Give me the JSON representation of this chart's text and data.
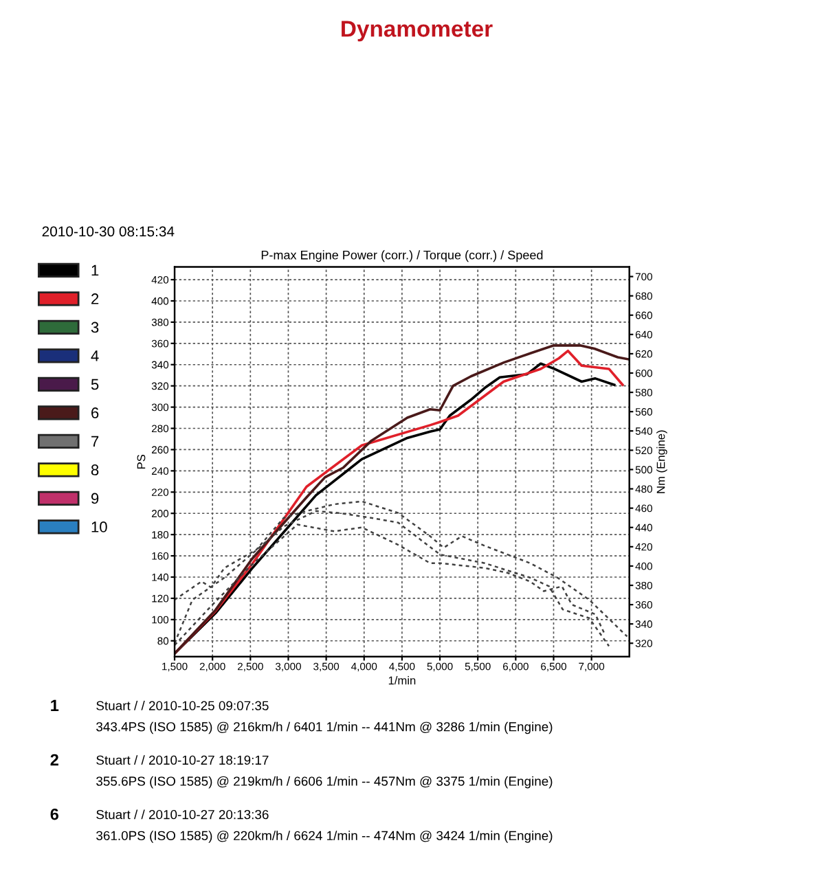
{
  "chart_data": {
    "type": "line",
    "title": "Dynamometer",
    "subtitle": "P-max Engine Power (corr.) / Torque (corr.) / Speed",
    "xlabel": "1/min",
    "ylabel": "PS",
    "y2label": "Nm (Engine)",
    "xlim": [
      1500,
      7500
    ],
    "xticks": [
      {
        "value": 1500,
        "label": "1,500"
      },
      {
        "value": 2000,
        "label": "2,000"
      },
      {
        "value": 2500,
        "label": "2,500"
      },
      {
        "value": 3000,
        "label": "3,000"
      },
      {
        "value": 3500,
        "label": "3,500"
      },
      {
        "value": 4000,
        "label": "4,000"
      },
      {
        "value": 4500,
        "label": "4,500"
      },
      {
        "value": 5000,
        "label": "5,000"
      },
      {
        "value": 5500,
        "label": "5,500"
      },
      {
        "value": 6000,
        "label": "6,000"
      },
      {
        "value": 6500,
        "label": "6,500"
      },
      {
        "value": 7000,
        "label": "7,000"
      }
    ],
    "ylim": [
      65,
      432
    ],
    "yticks": [
      80,
      100,
      120,
      140,
      160,
      180,
      200,
      220,
      240,
      260,
      280,
      300,
      320,
      340,
      360,
      380,
      400,
      420
    ],
    "y2lim": [
      306,
      710
    ],
    "y2ticks": [
      320,
      340,
      360,
      380,
      400,
      420,
      440,
      460,
      480,
      500,
      520,
      540,
      560,
      580,
      600,
      620,
      640,
      660,
      680,
      700
    ],
    "grid": true,
    "legend": "left",
    "line_style": "solid",
    "series": [
      {
        "name": "1",
        "color": "#000000",
        "x": [
          1500,
          2040,
          2520,
          3365,
          3970,
          4570,
          4870,
          5000,
          5130,
          5410,
          5590,
          5790,
          6150,
          6330,
          6510,
          6870,
          7050,
          7300
        ],
        "values": [
          68,
          106,
          148,
          217,
          251,
          271,
          277,
          279,
          292,
          307,
          318,
          328,
          331,
          341,
          336,
          324,
          327,
          321
        ]
      },
      {
        "name": "2",
        "color": "#e0202a",
        "x": [
          1500,
          2040,
          2520,
          3240,
          3970,
          4870,
          5000,
          5240,
          5840,
          6330,
          6570,
          6690,
          6870,
          7230,
          7410
        ],
        "values": [
          68,
          108,
          152,
          225,
          264,
          283,
          286,
          292,
          324,
          336,
          346,
          353,
          339,
          336,
          321
        ]
      },
      {
        "name": "3",
        "color": "#2e6b3a"
      },
      {
        "name": "4",
        "color": "#1a2f7a"
      },
      {
        "name": "5",
        "color": "#4a1a4a"
      },
      {
        "name": "6",
        "color": "#4a1a1a",
        "x": [
          1500,
          2040,
          2520,
          3240,
          3485,
          3725,
          4090,
          4570,
          4870,
          5000,
          5174,
          5410,
          5844,
          6206,
          6496,
          6858,
          7039,
          7346,
          7491
        ],
        "values": [
          68,
          109,
          157,
          215,
          234,
          243,
          268,
          290,
          298,
          297,
          320,
          329,
          342,
          351,
          358,
          358,
          355,
          347,
          345
        ]
      },
      {
        "name": "7",
        "color": "#707070"
      },
      {
        "name": "8",
        "color": "#ffff00"
      },
      {
        "name": "9",
        "color": "#c0306a"
      },
      {
        "name": "10",
        "color": "#2a7fc0"
      },
      {
        "color": "#404040",
        "axis": "y2",
        "line_style": "dashed",
        "x": [
          1500,
          1855,
          1980,
          2157,
          2580,
          2940,
          3240,
          3605,
          3970,
          4450,
          4870,
          5050,
          5290,
          5590,
          5890,
          6190,
          6550,
          6970,
          7470
        ],
        "values": [
          365,
          384,
          378,
          398,
          417,
          450,
          457,
          464,
          467,
          455,
          431,
          419,
          431,
          421,
          412,
          403,
          388,
          365,
          327
        ]
      },
      {
        "color": "#404040",
        "axis": "y2",
        "line_style": "dashed",
        "x": [
          1500,
          1735,
          2157,
          2940,
          3365,
          3665,
          4090,
          4450,
          5000,
          5590,
          6190,
          6440,
          6620,
          6970,
          7230
        ],
        "values": [
          320,
          365,
          388,
          441,
          457,
          455,
          450,
          445,
          412,
          403,
          388,
          379,
          355,
          346,
          317
        ]
      },
      {
        "color": "#404040",
        "axis": "y2",
        "line_style": "dashed",
        "x": [
          1500,
          2000,
          2500,
          3120,
          3605,
          3970,
          4450,
          4870,
          5000,
          5590,
          5890,
          6190,
          6370,
          6610,
          6740,
          7050,
          7165
        ],
        "values": [
          318,
          360,
          400,
          443,
          436,
          440,
          422,
          403,
          403,
          398,
          393,
          384,
          374,
          379,
          360,
          350,
          331
        ]
      }
    ],
    "annotations": [
      "2010-10-30 08:15:34",
      "1",
      "Stuart / / 2010-10-25 09:07:35",
      "343.4PS (ISO 1585) @ 216km/h / 6401 1/min -- 441Nm @ 3286 1/min (Engine)",
      "2",
      "Stuart / / 2010-10-27 18:19:17",
      "355.6PS (ISO 1585) @ 219km/h / 6606 1/min -- 457Nm @ 3375 1/min (Engine)",
      "6",
      "Stuart / / 2010-10-27 20:13:36",
      "361.0PS (ISO 1585) @ 220km/h / 6624 1/min -- 474Nm @ 3424 1/min (Engine)"
    ]
  }
}
